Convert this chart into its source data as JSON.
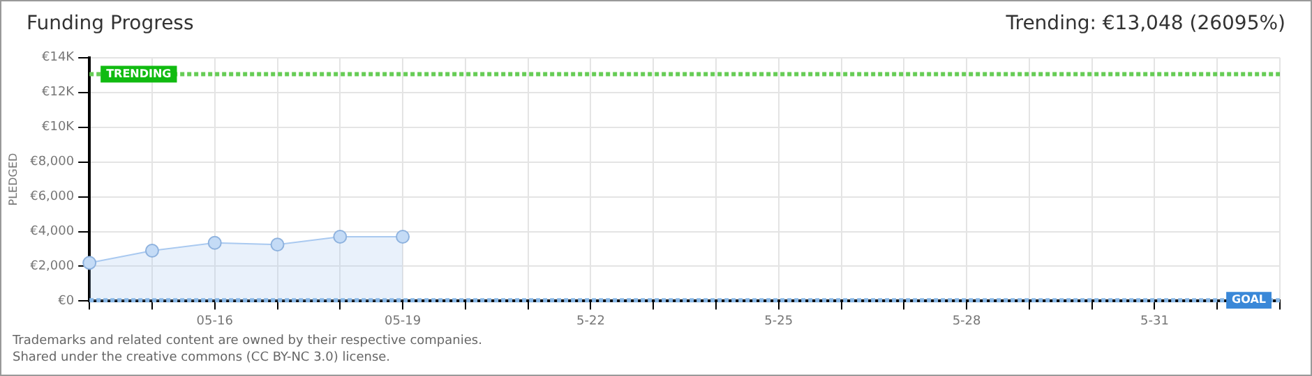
{
  "chart_data": {
    "type": "area",
    "title": "Funding Progress",
    "subtitle": "Trending: €13,048 (26095%)",
    "ylabel": "PLEDGED",
    "categories": [
      null,
      null,
      "05-16",
      null,
      null,
      "05-19",
      null,
      null,
      "5-22",
      null,
      null,
      "5-25",
      null,
      null,
      "5-28",
      null,
      null,
      "5-31",
      null,
      null
    ],
    "series": [
      {
        "color": "#a9c9f0",
        "values": [
          2200,
          2900,
          3350,
          3250,
          3700,
          3700,
          null,
          null,
          null,
          null,
          null,
          null,
          null,
          null,
          null,
          null,
          null,
          null,
          null,
          null
        ]
      }
    ],
    "ylim": [
      0,
      14000
    ],
    "yticks": [
      {
        "value": 0,
        "label": "€0"
      },
      {
        "value": 2000,
        "label": "€2,000"
      },
      {
        "value": 4000,
        "label": "€4,000"
      },
      {
        "value": 6000,
        "label": "€6,000"
      },
      {
        "value": 8000,
        "label": "€8,000"
      },
      {
        "value": 10000,
        "label": "€10K"
      },
      {
        "value": 12000,
        "label": "€12K"
      },
      {
        "value": 14000,
        "label": "€14K"
      }
    ],
    "ref_lines": [
      {
        "axis": "y",
        "value": 13048,
        "label": "TRENDING",
        "color": "#66cc55",
        "line_style": "dashed"
      },
      {
        "axis": "y",
        "value": 50,
        "label": "GOAL",
        "color": "#88b8e8",
        "line_style": "dashed"
      }
    ],
    "grid": true,
    "legend": false,
    "marker": "circle",
    "annotations": [
      "Trademarks and related content are owned by their respective companies.",
      "Shared under the creative commons (CC BY-NC 3.0) license."
    ]
  }
}
